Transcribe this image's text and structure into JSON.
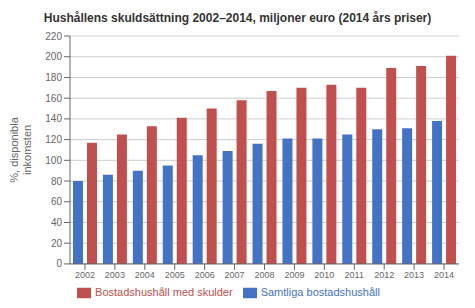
{
  "chart_data": {
    "type": "bar",
    "title": "Hushållens skuldsättning 2002–2014, miljoner euro (2014 års priser)",
    "y_label": "%, disponibla\ninkomsten",
    "categories": [
      "2002",
      "2003",
      "2004",
      "2005",
      "2006",
      "2007",
      "2008",
      "2009",
      "2010",
      "2011",
      "2012",
      "2013",
      "2014"
    ],
    "series": [
      {
        "name": "Samtliga bostadshushåll",
        "color": "#4472C4",
        "values": [
          80,
          86,
          90,
          95,
          105,
          109,
          116,
          121,
          121,
          125,
          130,
          131,
          138
        ]
      },
      {
        "name": "Bostadshushåll med skulder",
        "color": "#C0504D",
        "values": [
          117,
          125,
          133,
          141,
          150,
          158,
          167,
          170,
          173,
          170,
          189,
          191,
          201
        ]
      }
    ],
    "ylim": [
      0,
      220
    ],
    "yticks": [
      0,
      20,
      40,
      60,
      80,
      100,
      120,
      140,
      160,
      180,
      200,
      220
    ],
    "grid": true,
    "legend": "bottom"
  }
}
